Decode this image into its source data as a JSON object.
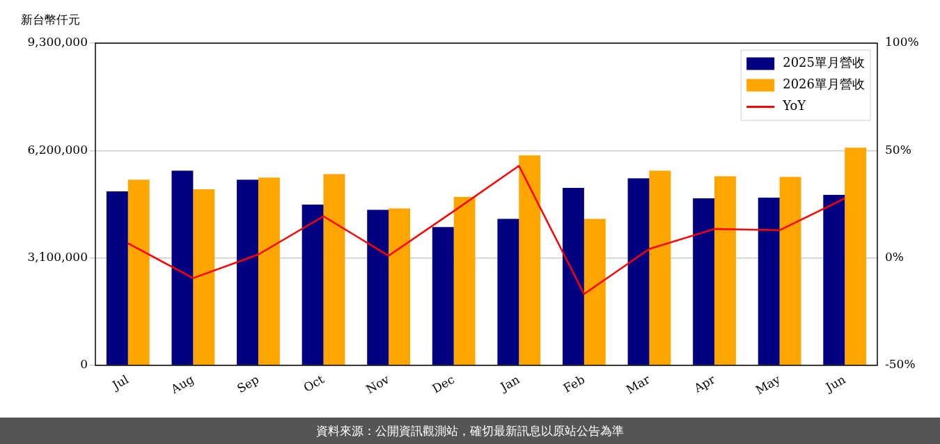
{
  "chart_data": {
    "type": "bar",
    "ylabel": "新台幣仟元",
    "categories": [
      "Jul",
      "Aug",
      "Sep",
      "Oct",
      "Nov",
      "Dec",
      "Jan",
      "Feb",
      "Mar",
      "Apr",
      "May",
      "Jun"
    ],
    "series": [
      {
        "name": "2025單月營收",
        "color": "#000080",
        "values": [
          5020000,
          5620000,
          5360000,
          4640000,
          4490000,
          3990000,
          4230000,
          5120000,
          5400000,
          4820000,
          4840000,
          4920000
        ]
      },
      {
        "name": "2026單月營收",
        "color": "#ffa500",
        "values": [
          5360000,
          5080000,
          5420000,
          5520000,
          4530000,
          4860000,
          6060000,
          4230000,
          5620000,
          5460000,
          5440000,
          6280000
        ]
      },
      {
        "name": "YoY",
        "type": "line",
        "axis": "y2",
        "color": "#ff0000",
        "values": [
          6.8,
          -9.4,
          1.6,
          19.4,
          1.0,
          21.8,
          42.9,
          -16.8,
          4.2,
          13.5,
          12.9,
          27.7
        ]
      }
    ],
    "ylim": [
      0,
      9300000
    ],
    "yticks": [
      {
        "value": 0,
        "label": "0"
      },
      {
        "value": 3100000,
        "label": "3,100,000"
      },
      {
        "value": 6200000,
        "label": "6,200,000"
      },
      {
        "value": 9300000,
        "label": "9,300,000"
      }
    ],
    "y2lim": [
      -50,
      100
    ],
    "y2ticks": [
      {
        "value": -50,
        "label": "-50%"
      },
      {
        "value": 0,
        "label": "0%"
      },
      {
        "value": 50,
        "label": "50%"
      },
      {
        "value": 100,
        "label": "100%"
      }
    ],
    "grid": "y",
    "legend": "top right",
    "marker": "none",
    "line_style": "solid",
    "annotations": [
      "資料來源：公開資訊觀測站，確切最新訊息以原站公告為準"
    ]
  }
}
